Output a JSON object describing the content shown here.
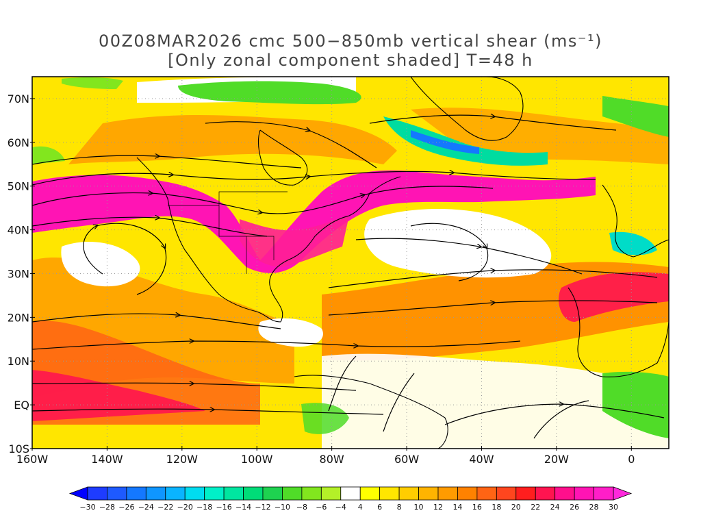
{
  "title": {
    "line1": "00Z08MAR2026 cmc 500−850mb vertical shear (ms⁻¹)",
    "line2": "[Only zonal component shaded] T=48 h"
  },
  "map": {
    "lon_range": [
      -160,
      10
    ],
    "lat_range": [
      -10,
      75
    ],
    "lat_labels": [
      {
        "lat": 70,
        "text": "70N"
      },
      {
        "lat": 60,
        "text": "60N"
      },
      {
        "lat": 50,
        "text": "50N"
      },
      {
        "lat": 40,
        "text": "40N"
      },
      {
        "lat": 30,
        "text": "30N"
      },
      {
        "lat": 20,
        "text": "20N"
      },
      {
        "lat": 10,
        "text": "10N"
      },
      {
        "lat": 0,
        "text": "EQ"
      },
      {
        "lat": -10,
        "text": "10S"
      }
    ],
    "lon_labels": [
      {
        "lon": -160,
        "text": "160W"
      },
      {
        "lon": -140,
        "text": "140W"
      },
      {
        "lon": -120,
        "text": "120W"
      },
      {
        "lon": -100,
        "text": "100W"
      },
      {
        "lon": -80,
        "text": "80W"
      },
      {
        "lon": -60,
        "text": "60W"
      },
      {
        "lon": -40,
        "text": "40W"
      },
      {
        "lon": -20,
        "text": "20W"
      },
      {
        "lon": 0,
        "text": "0"
      }
    ],
    "colors": {
      "frame": "#000000",
      "grid": "#999999",
      "land_outline": "#000000",
      "streamline": "#000000"
    }
  },
  "colorbar": {
    "labels": [
      "−30",
      "−28",
      "−26",
      "−24",
      "−22",
      "−20",
      "−18",
      "−16",
      "−14",
      "−12",
      "−10",
      "−8",
      "−6",
      "−4",
      "4",
      "6",
      "8",
      "10",
      "12",
      "14",
      "16",
      "18",
      "20",
      "22",
      "24",
      "26",
      "28",
      "30"
    ],
    "colors": [
      "#1e3cff",
      "#1e5aff",
      "#1478ff",
      "#0f96ff",
      "#0ab4ff",
      "#00dcf0",
      "#00f0c8",
      "#00e6a0",
      "#00dc78",
      "#1ed250",
      "#50dc28",
      "#82e61e",
      "#b4f028",
      "#ffffff",
      "#ffff00",
      "#ffe600",
      "#ffcd00",
      "#ffb400",
      "#ff9b00",
      "#ff8200",
      "#ff6414",
      "#ff461e",
      "#ff1e1e",
      "#ff1450",
      "#ff0f8c",
      "#ff14b4",
      "#ff1ec8"
    ],
    "left_arrow_color": "#0000ff",
    "right_arrow_color": "#ff28dc"
  }
}
